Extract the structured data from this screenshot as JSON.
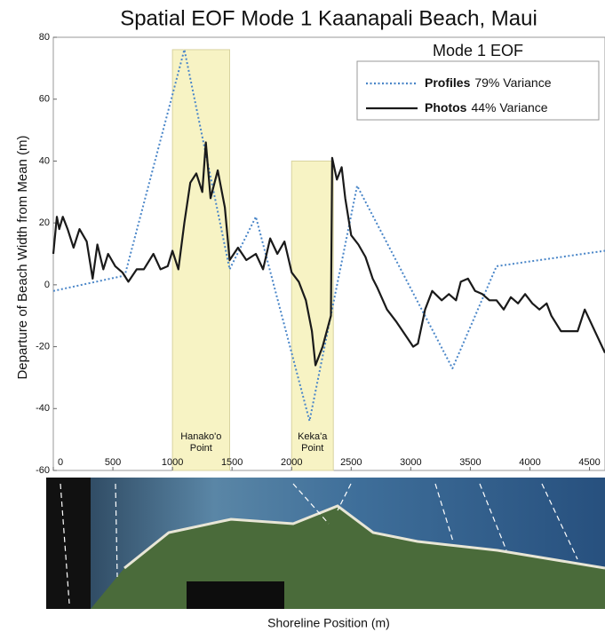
{
  "chart_data": {
    "type": "line",
    "title": "Spatial EOF Mode 1  Kaanapali Beach, Maui",
    "x_label": "Shoreline Position (m)",
    "y_label": "Departure of Beach Width from Mean (m)",
    "legend_title": "Mode 1 EOF",
    "xlim": [
      0,
      4630
    ],
    "ylim": [
      -60,
      80
    ],
    "xticks": [
      0,
      500,
      1000,
      1500,
      2000,
      2500,
      3000,
      3500,
      4000,
      4500
    ],
    "yticks": [
      -60,
      -40,
      -20,
      0,
      20,
      40,
      60,
      80
    ],
    "highlights": [
      {
        "x": [
          1000,
          1480
        ],
        "top": 76,
        "label": [
          "Hanako'o",
          "Point"
        ]
      },
      {
        "x": [
          2000,
          2350
        ],
        "top": 40,
        "label": [
          "Keka'a",
          "Point"
        ]
      }
    ],
    "series": [
      {
        "name": "Profiles",
        "legend_note": "79% Variance",
        "color": "#4a86c8",
        "style": "dotted",
        "x": [
          0,
          600,
          1100,
          1480,
          1700,
          2150,
          2550,
          3350,
          3720,
          4630
        ],
        "values": [
          -2,
          3,
          76,
          5,
          22,
          -44,
          32,
          -27,
          6,
          11
        ]
      },
      {
        "name": "Photos",
        "legend_note": "44% Variance",
        "color": "#1a1a1a",
        "style": "solid",
        "x": [
          0,
          30,
          50,
          80,
          120,
          170,
          220,
          280,
          330,
          370,
          420,
          460,
          520,
          580,
          630,
          700,
          760,
          840,
          900,
          960,
          1000,
          1050,
          1100,
          1150,
          1200,
          1250,
          1280,
          1320,
          1380,
          1440,
          1480,
          1550,
          1620,
          1700,
          1760,
          1820,
          1880,
          1940,
          2000,
          2060,
          2120,
          2170,
          2200,
          2260,
          2330,
          2340,
          2380,
          2420,
          2450,
          2500,
          2560,
          2620,
          2680,
          2720,
          2800,
          2880,
          2950,
          3020,
          3060,
          3120,
          3180,
          3260,
          3320,
          3380,
          3420,
          3480,
          3540,
          3600,
          3660,
          3720,
          3780,
          3840,
          3900,
          3960,
          4020,
          4080,
          4140,
          4180,
          4260,
          4330,
          4400,
          4460,
          4630
        ],
        "values": [
          10,
          22,
          18,
          22,
          18,
          12,
          18,
          14,
          2,
          13,
          5,
          10,
          6,
          4,
          1,
          5,
          5,
          10,
          5,
          6,
          11,
          5,
          20,
          33,
          36,
          30,
          46,
          28,
          37,
          25,
          8,
          12,
          8,
          10,
          5,
          15,
          10,
          14,
          4,
          1,
          -5,
          -15,
          -26,
          -20,
          -10,
          41,
          34,
          38,
          28,
          16,
          13,
          9,
          2,
          -1,
          -8,
          -12,
          -16,
          -20,
          -19,
          -8,
          -2,
          -5,
          -3,
          -5,
          1,
          2,
          -2,
          -3,
          -5,
          -5,
          -8,
          -4,
          -6,
          -3,
          -6,
          -8,
          -6,
          -10,
          -15,
          -15,
          -15,
          -8,
          -22
        ]
      }
    ]
  }
}
